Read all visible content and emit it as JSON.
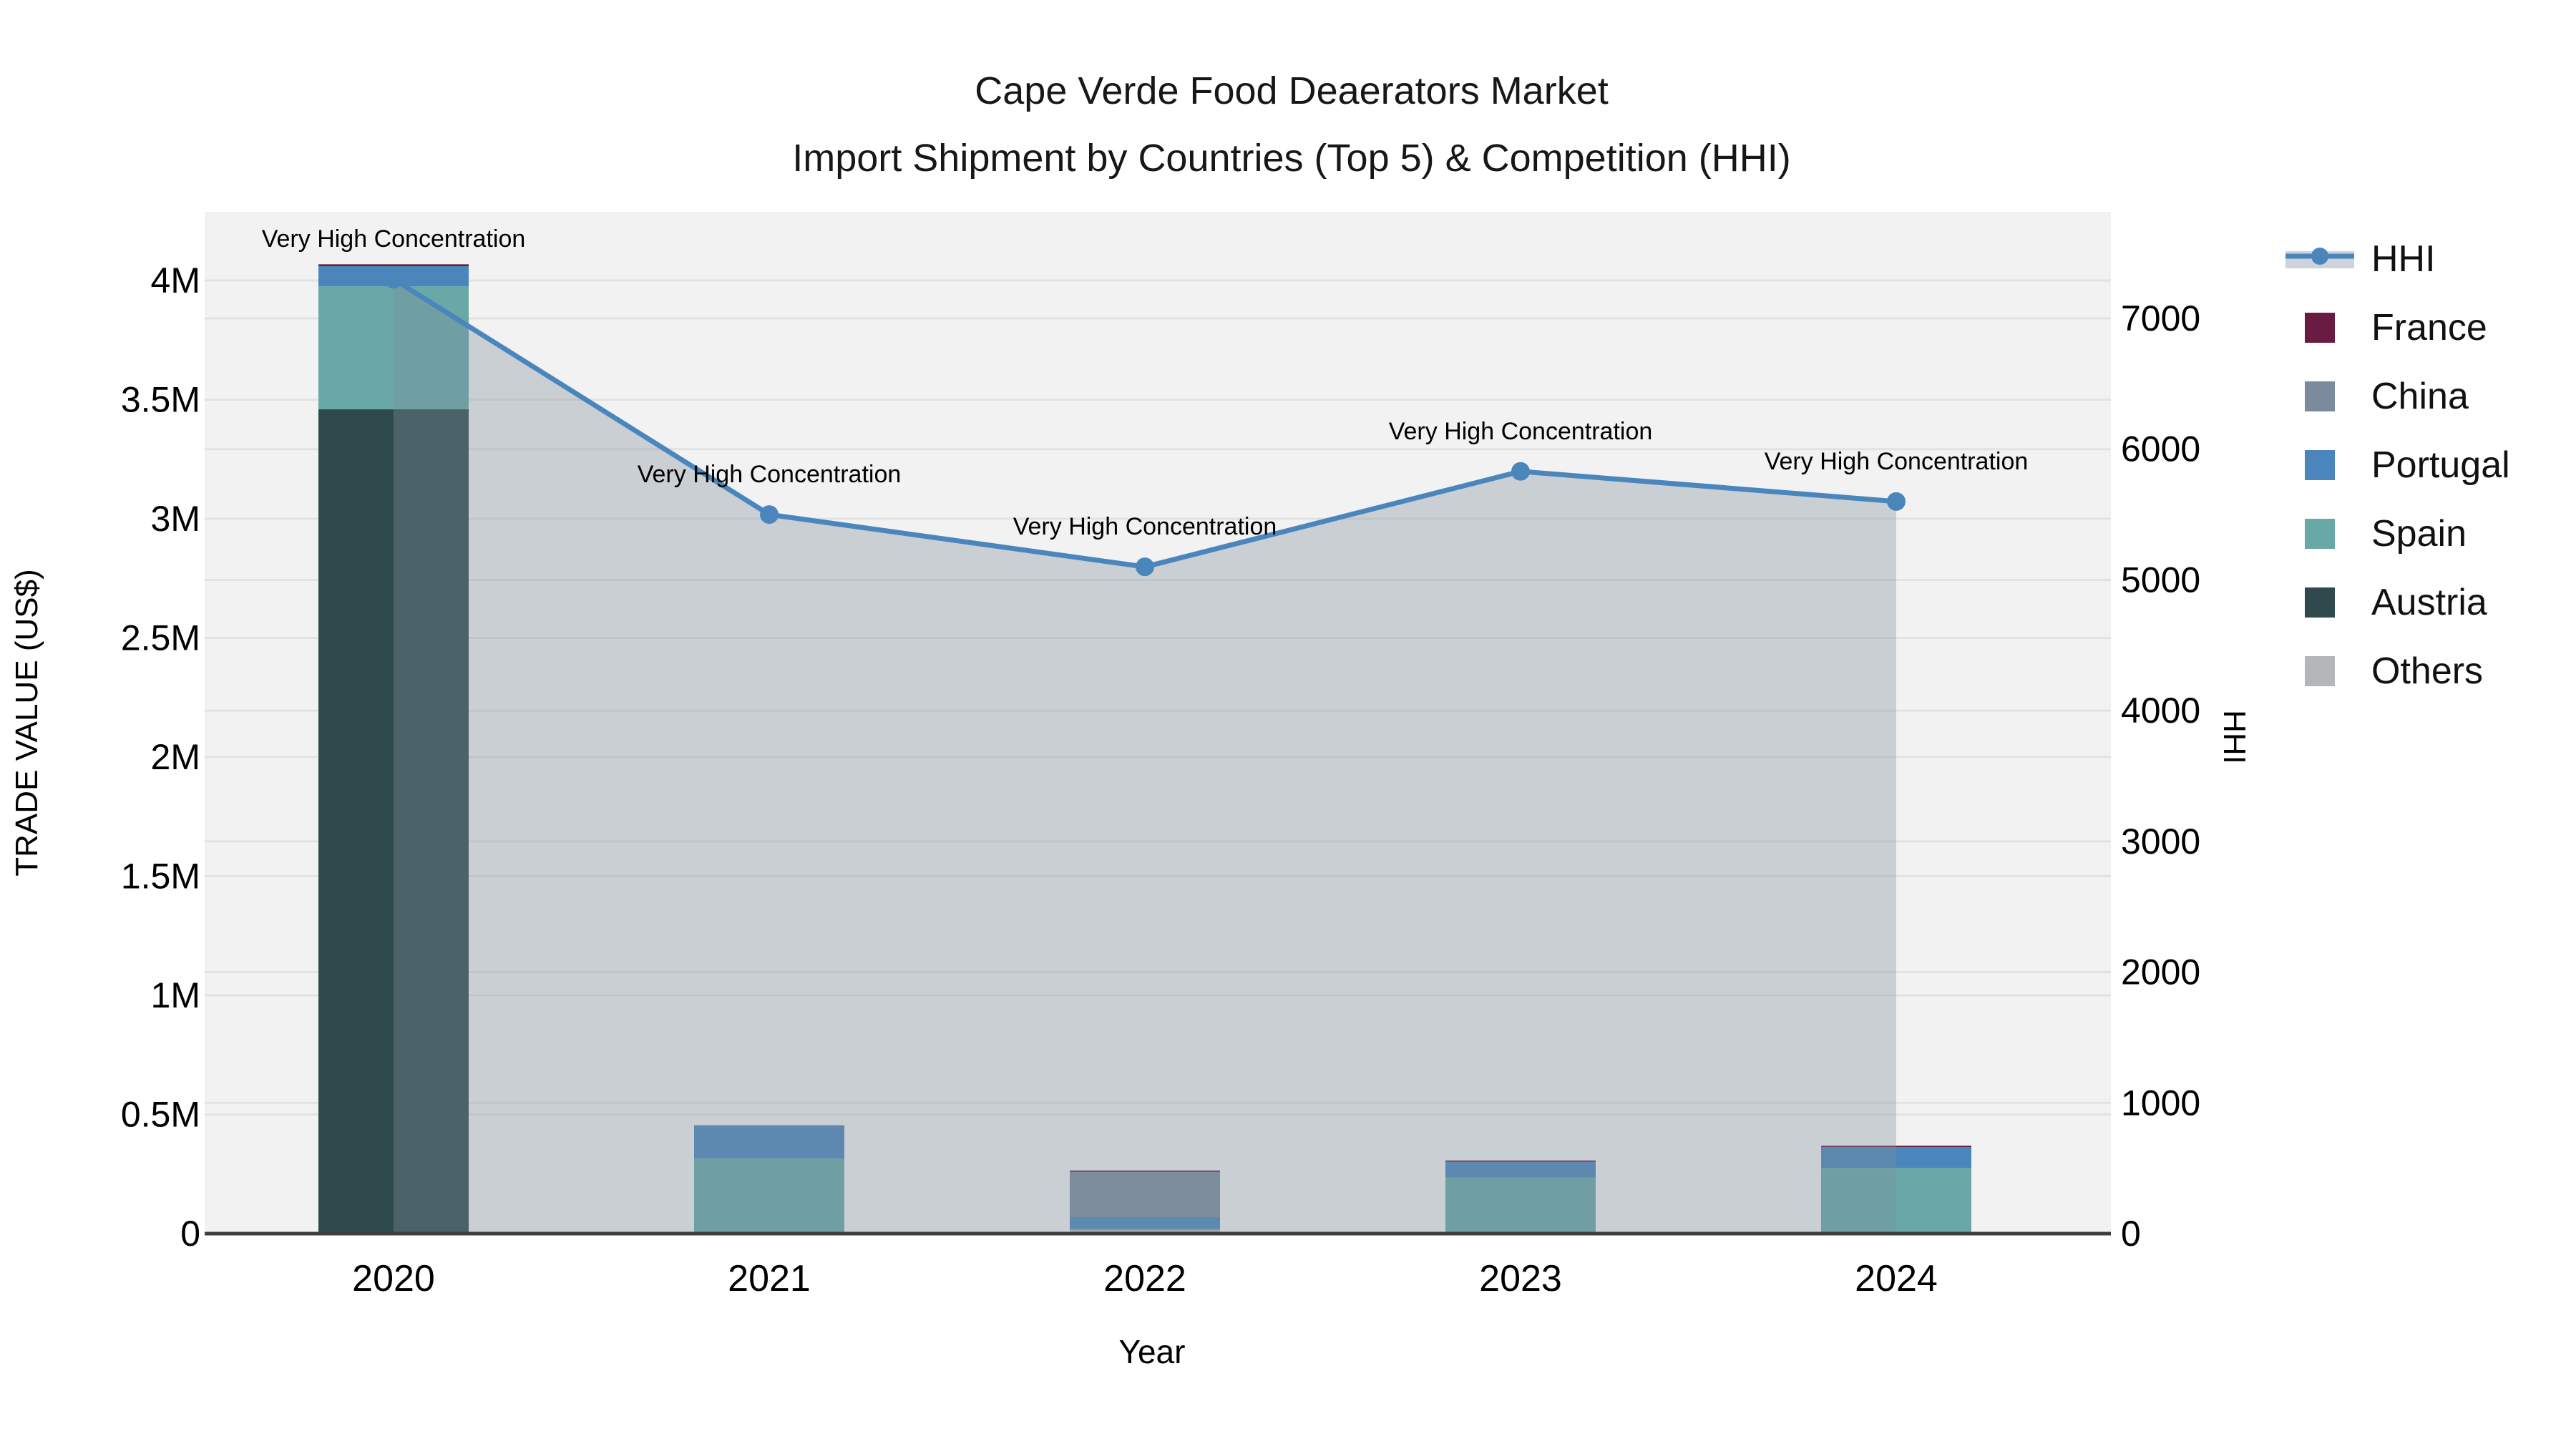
{
  "title": {
    "line1": "Cape Verde Food Deaerators Market",
    "line2": "Import Shipment by Countries (Top 5) & Competition (HHI)"
  },
  "chart_data": {
    "type": "bar+line",
    "categories": [
      "2020",
      "2021",
      "2022",
      "2023",
      "2024"
    ],
    "bar_value_unit": "US$",
    "stack_order_bottom_to_top": [
      "Others",
      "Austria",
      "Spain",
      "Portugal",
      "China",
      "France"
    ],
    "series": [
      {
        "name": "France",
        "color": "#6a1b42",
        "values": [
          8000,
          0,
          6000,
          6000,
          6000
        ]
      },
      {
        "name": "China",
        "color": "#7b8b9d",
        "values": [
          0,
          0,
          190000,
          0,
          0
        ]
      },
      {
        "name": "Portugal",
        "color": "#4a86bc",
        "values": [
          85000,
          140000,
          48000,
          66000,
          87000
        ]
      },
      {
        "name": "Spain",
        "color": "#68a8a6",
        "values": [
          515000,
          315000,
          6000,
          235000,
          270000
        ]
      },
      {
        "name": "Austria",
        "color": "#2f4a4d",
        "values": [
          3460000,
          0,
          0,
          0,
          0
        ]
      },
      {
        "name": "Others",
        "color": "#b3b7b7",
        "values": [
          0,
          0,
          15000,
          0,
          6000
        ]
      }
    ],
    "line": {
      "name": "HHI",
      "color": "#4a86bc",
      "area_fill": "rgba(130,142,158,0.35)",
      "values": [
        7300,
        5500,
        5100,
        5830,
        5600
      ],
      "annotations": [
        "Very High Concentration",
        "Very High Concentration",
        "Very High Concentration",
        "Very High Concentration",
        "Very High Concentration"
      ]
    },
    "axes": {
      "left": {
        "title": "TRADE VALUE (US$)",
        "ticks": [
          "0",
          "0.5M",
          "1M",
          "1.5M",
          "2M",
          "2.5M",
          "3M",
          "3.5M",
          "4M"
        ],
        "tick_step": 500000
      },
      "right": {
        "title": "HHI",
        "ticks": [
          "0",
          "1000",
          "2000",
          "3000",
          "4000",
          "5000",
          "6000",
          "7000"
        ],
        "tick_step": 1000
      },
      "x": {
        "title": "Year"
      }
    },
    "legend": [
      "HHI",
      "France",
      "China",
      "Portugal",
      "Spain",
      "Austria",
      "Others"
    ],
    "style": {
      "plot_bg": "#f2f2f2",
      "gridline": "#e2e2e2",
      "axis_line": "#3d3d3d",
      "text_color": "#000000"
    }
  }
}
